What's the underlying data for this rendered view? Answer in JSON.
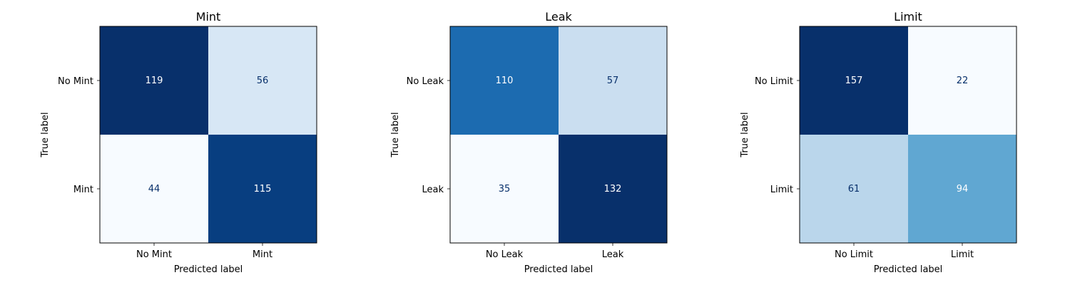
{
  "chart_data": [
    {
      "type": "heatmap",
      "title": "Mint",
      "xlabel": "Predicted label",
      "ylabel": "True label",
      "x_categories": [
        "No Mint",
        "Mint"
      ],
      "y_categories": [
        "No Mint",
        "Mint"
      ],
      "matrix": [
        [
          119,
          56
        ],
        [
          44,
          115
        ]
      ],
      "colormap": "Blues",
      "grid": false
    },
    {
      "type": "heatmap",
      "title": "Leak",
      "xlabel": "Predicted label",
      "ylabel": "True label",
      "x_categories": [
        "No Leak",
        "Leak"
      ],
      "y_categories": [
        "No Leak",
        "Leak"
      ],
      "matrix": [
        [
          110,
          57
        ],
        [
          35,
          132
        ]
      ],
      "colormap": "Blues",
      "grid": false
    },
    {
      "type": "heatmap",
      "title": "Limit",
      "xlabel": "Predicted label",
      "ylabel": "True label",
      "x_categories": [
        "No Limit",
        "Limit"
      ],
      "y_categories": [
        "No Limit",
        "Limit"
      ],
      "matrix": [
        [
          157,
          22
        ],
        [
          61,
          94
        ]
      ],
      "colormap": "Blues",
      "grid": false
    }
  ]
}
